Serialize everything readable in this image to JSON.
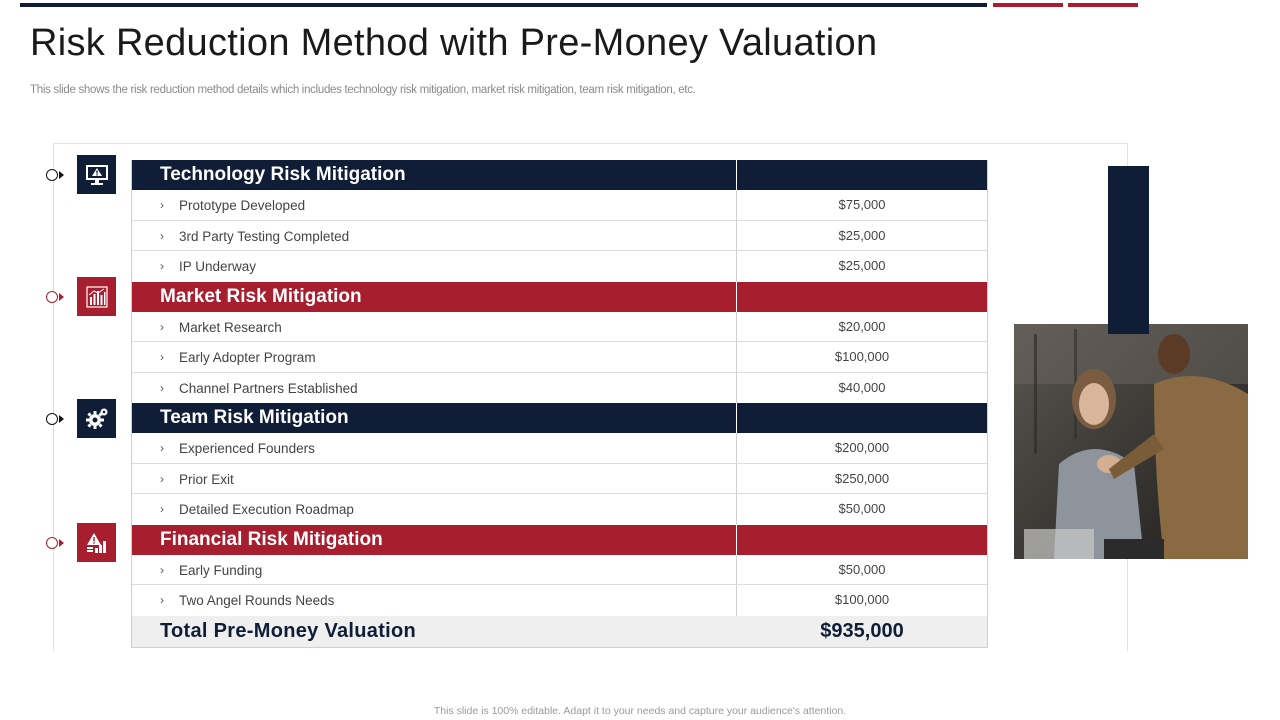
{
  "slide": {
    "title": "Risk Reduction Method with Pre-Money Valuation",
    "subtitle": "This slide shows the risk reduction method details which includes technology risk mitigation, market risk mitigation, team risk mitigation, etc.",
    "footer": "This slide is 100% editable. Adapt it to your needs and capture your audience's attention."
  },
  "colors": {
    "navy": "#0f1e36",
    "red": "#a71e2e"
  },
  "sections": [
    {
      "title": "Technology Risk Mitigation",
      "icon": "monitor-warning-icon",
      "color": "navy",
      "items": [
        {
          "label": "Prototype Developed",
          "value": "$75,000"
        },
        {
          "label": "3rd Party Testing Completed",
          "value": "$25,000"
        },
        {
          "label": "IP Underway",
          "value": "$25,000"
        }
      ]
    },
    {
      "title": "Market Risk Mitigation",
      "icon": "market-chart-icon",
      "color": "red",
      "items": [
        {
          "label": "Market Research",
          "value": "$20,000"
        },
        {
          "label": "Early Adopter Program",
          "value": "$100,000"
        },
        {
          "label": "Channel Partners Established",
          "value": "$40,000"
        }
      ]
    },
    {
      "title": "Team Risk Mitigation",
      "icon": "gear-icon",
      "color": "navy",
      "items": [
        {
          "label": "Experienced Founders",
          "value": "$200,000"
        },
        {
          "label": "Prior Exit",
          "value": "$250,000"
        },
        {
          "label": "Detailed Execution Roadmap",
          "value": "$50,000"
        }
      ]
    },
    {
      "title": "Financial Risk Mitigation",
      "icon": "finance-warning-icon",
      "color": "red",
      "items": [
        {
          "label": "Early Funding",
          "value": "$50,000"
        },
        {
          "label": "Two Angel Rounds Needs",
          "value": "$100,000"
        }
      ]
    }
  ],
  "total": {
    "label": "Total Pre-Money Valuation",
    "value": "$935,000"
  },
  "photo": {
    "description_icon": "business-people-photo"
  }
}
